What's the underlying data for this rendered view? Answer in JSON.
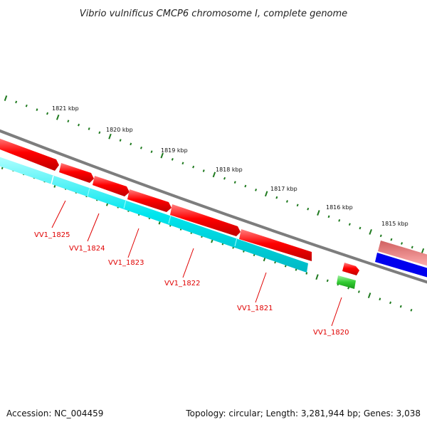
{
  "title": "Vibrio vulnificus CMCP6 chromosome I, complete genome",
  "accession": "Accession: NC_004459",
  "summary": "Topology: circular; Length: 3,281,944 bp; Genes: 3,038",
  "colors": {
    "backbone": "#7a7a7a",
    "forward_gene": "#ff0000",
    "reverse_strand": "#00e0e8",
    "tick": "#1f7a1f",
    "green_feature": "#33cc33",
    "blue_feature": "#0000ee",
    "pink_feature": "#ff7a7a",
    "label": "#e00000"
  },
  "ruler": {
    "labels": [
      "1821 kbp",
      "1820 kbp",
      "1819 kbp",
      "1818 kbp",
      "1817 kbp",
      "1816 kbp",
      "1815 kbp"
    ]
  },
  "genes": [
    {
      "id": "VV1_1825"
    },
    {
      "id": "VV1_1824"
    },
    {
      "id": "VV1_1823"
    },
    {
      "id": "VV1_1822"
    },
    {
      "id": "VV1_1821"
    },
    {
      "id": "VV1_1820"
    }
  ]
}
